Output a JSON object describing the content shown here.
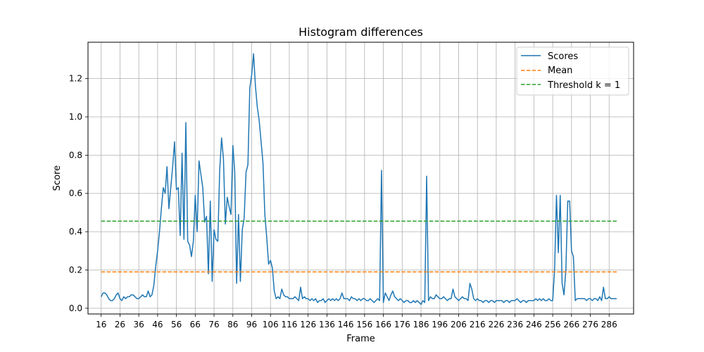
{
  "chart_data": {
    "type": "line",
    "title": "Histogram differences",
    "xlabel": "Frame",
    "ylabel": "Score",
    "xlim": [
      9,
      299
    ],
    "ylim": [
      -0.03,
      1.39
    ],
    "grid": true,
    "legend_position": "top-right",
    "x_ticks": [
      16,
      26,
      36,
      46,
      56,
      66,
      76,
      86,
      96,
      106,
      116,
      126,
      136,
      146,
      156,
      166,
      176,
      186,
      196,
      206,
      216,
      226,
      236,
      246,
      256,
      266,
      276,
      286
    ],
    "x_tick_labels": [
      "16",
      "26",
      "36",
      "46",
      "56",
      "66",
      "76",
      "86",
      "96",
      "106",
      "116",
      "126",
      "136",
      "146",
      "156",
      "166",
      "176",
      "186",
      "196",
      "206",
      "216",
      "226",
      "236",
      "246",
      "256",
      "266",
      "276",
      "286"
    ],
    "y_ticks": [
      0.0,
      0.2,
      0.4,
      0.6,
      0.8,
      1.0,
      1.2
    ],
    "y_tick_labels": [
      "0.0",
      "0.2",
      "0.4",
      "0.6",
      "0.8",
      "1.0",
      "1.2"
    ],
    "series": [
      {
        "name": "Scores",
        "color": "#1f77b4",
        "style": "solid",
        "points": [
          [
            16,
            0.06
          ],
          [
            17,
            0.08
          ],
          [
            18,
            0.08
          ],
          [
            19,
            0.07
          ],
          [
            20,
            0.05
          ],
          [
            21,
            0.04
          ],
          [
            22,
            0.04
          ],
          [
            23,
            0.05
          ],
          [
            24,
            0.07
          ],
          [
            25,
            0.08
          ],
          [
            26,
            0.05
          ],
          [
            27,
            0.04
          ],
          [
            28,
            0.06
          ],
          [
            29,
            0.05
          ],
          [
            30,
            0.06
          ],
          [
            31,
            0.06
          ],
          [
            32,
            0.07
          ],
          [
            33,
            0.07
          ],
          [
            34,
            0.06
          ],
          [
            35,
            0.05
          ],
          [
            36,
            0.05
          ],
          [
            37,
            0.06
          ],
          [
            38,
            0.07
          ],
          [
            39,
            0.06
          ],
          [
            40,
            0.06
          ],
          [
            41,
            0.09
          ],
          [
            42,
            0.06
          ],
          [
            43,
            0.07
          ],
          [
            44,
            0.12
          ],
          [
            45,
            0.22
          ],
          [
            46,
            0.3
          ],
          [
            47,
            0.4
          ],
          [
            48,
            0.52
          ],
          [
            49,
            0.63
          ],
          [
            50,
            0.6
          ],
          [
            51,
            0.74
          ],
          [
            52,
            0.52
          ],
          [
            53,
            0.63
          ],
          [
            54,
            0.74
          ],
          [
            55,
            0.87
          ],
          [
            56,
            0.62
          ],
          [
            57,
            0.63
          ],
          [
            58,
            0.38
          ],
          [
            59,
            0.81
          ],
          [
            60,
            0.36
          ],
          [
            61,
            0.97
          ],
          [
            62,
            0.35
          ],
          [
            63,
            0.33
          ],
          [
            64,
            0.27
          ],
          [
            65,
            0.35
          ],
          [
            66,
            0.59
          ],
          [
            67,
            0.4
          ],
          [
            68,
            0.77
          ],
          [
            69,
            0.7
          ],
          [
            70,
            0.63
          ],
          [
            71,
            0.45
          ],
          [
            72,
            0.48
          ],
          [
            73,
            0.18
          ],
          [
            74,
            0.56
          ],
          [
            75,
            0.14
          ],
          [
            76,
            0.41
          ],
          [
            77,
            0.36
          ],
          [
            78,
            0.35
          ],
          [
            79,
            0.72
          ],
          [
            80,
            0.89
          ],
          [
            81,
            0.78
          ],
          [
            82,
            0.44
          ],
          [
            83,
            0.58
          ],
          [
            84,
            0.53
          ],
          [
            85,
            0.49
          ],
          [
            86,
            0.85
          ],
          [
            87,
            0.71
          ],
          [
            88,
            0.13
          ],
          [
            89,
            0.49
          ],
          [
            90,
            0.14
          ],
          [
            91,
            0.41
          ],
          [
            92,
            0.47
          ],
          [
            93,
            0.71
          ],
          [
            94,
            0.75
          ],
          [
            95,
            1.15
          ],
          [
            96,
            1.22
          ],
          [
            97,
            1.33
          ],
          [
            98,
            1.16
          ],
          [
            99,
            1.05
          ],
          [
            100,
            0.98
          ],
          [
            101,
            0.87
          ],
          [
            102,
            0.76
          ],
          [
            103,
            0.49
          ],
          [
            104,
            0.37
          ],
          [
            105,
            0.23
          ],
          [
            106,
            0.25
          ],
          [
            107,
            0.21
          ],
          [
            108,
            0.09
          ],
          [
            109,
            0.05
          ],
          [
            110,
            0.06
          ],
          [
            111,
            0.05
          ],
          [
            112,
            0.1
          ],
          [
            113,
            0.07
          ],
          [
            114,
            0.06
          ],
          [
            115,
            0.06
          ],
          [
            116,
            0.05
          ],
          [
            117,
            0.05
          ],
          [
            118,
            0.05
          ],
          [
            119,
            0.06
          ],
          [
            120,
            0.05
          ],
          [
            121,
            0.04
          ],
          [
            122,
            0.11
          ],
          [
            123,
            0.05
          ],
          [
            124,
            0.06
          ],
          [
            125,
            0.05
          ],
          [
            126,
            0.05
          ],
          [
            127,
            0.04
          ],
          [
            128,
            0.05
          ],
          [
            129,
            0.04
          ],
          [
            130,
            0.05
          ],
          [
            131,
            0.03
          ],
          [
            132,
            0.04
          ],
          [
            133,
            0.04
          ],
          [
            134,
            0.05
          ],
          [
            135,
            0.03
          ],
          [
            136,
            0.04
          ],
          [
            137,
            0.05
          ],
          [
            138,
            0.04
          ],
          [
            139,
            0.05
          ],
          [
            140,
            0.04
          ],
          [
            141,
            0.05
          ],
          [
            142,
            0.04
          ],
          [
            143,
            0.05
          ],
          [
            144,
            0.08
          ],
          [
            145,
            0.05
          ],
          [
            146,
            0.05
          ],
          [
            147,
            0.05
          ],
          [
            148,
            0.04
          ],
          [
            149,
            0.06
          ],
          [
            150,
            0.05
          ],
          [
            151,
            0.05
          ],
          [
            152,
            0.04
          ],
          [
            153,
            0.05
          ],
          [
            154,
            0.04
          ],
          [
            155,
            0.05
          ],
          [
            156,
            0.05
          ],
          [
            157,
            0.04
          ],
          [
            158,
            0.04
          ],
          [
            159,
            0.05
          ],
          [
            160,
            0.04
          ],
          [
            161,
            0.03
          ],
          [
            162,
            0.04
          ],
          [
            163,
            0.05
          ],
          [
            164,
            0.04
          ],
          [
            165,
            0.72
          ],
          [
            166,
            0.03
          ],
          [
            167,
            0.08
          ],
          [
            168,
            0.06
          ],
          [
            169,
            0.04
          ],
          [
            170,
            0.07
          ],
          [
            171,
            0.09
          ],
          [
            172,
            0.06
          ],
          [
            173,
            0.05
          ],
          [
            174,
            0.04
          ],
          [
            175,
            0.05
          ],
          [
            176,
            0.04
          ],
          [
            177,
            0.03
          ],
          [
            178,
            0.04
          ],
          [
            179,
            0.04
          ],
          [
            180,
            0.03
          ],
          [
            181,
            0.03
          ],
          [
            182,
            0.04
          ],
          [
            183,
            0.03
          ],
          [
            184,
            0.04
          ],
          [
            185,
            0.03
          ],
          [
            186,
            0.02
          ],
          [
            187,
            0.04
          ],
          [
            188,
            0.03
          ],
          [
            189,
            0.69
          ],
          [
            190,
            0.04
          ],
          [
            191,
            0.06
          ],
          [
            192,
            0.05
          ],
          [
            193,
            0.05
          ],
          [
            194,
            0.07
          ],
          [
            195,
            0.06
          ],
          [
            196,
            0.05
          ],
          [
            197,
            0.05
          ],
          [
            198,
            0.06
          ],
          [
            199,
            0.05
          ],
          [
            200,
            0.04
          ],
          [
            201,
            0.05
          ],
          [
            202,
            0.05
          ],
          [
            203,
            0.1
          ],
          [
            204,
            0.06
          ],
          [
            205,
            0.05
          ],
          [
            206,
            0.04
          ],
          [
            207,
            0.05
          ],
          [
            208,
            0.06
          ],
          [
            209,
            0.05
          ],
          [
            210,
            0.05
          ],
          [
            211,
            0.04
          ],
          [
            212,
            0.13
          ],
          [
            213,
            0.1
          ],
          [
            214,
            0.05
          ],
          [
            215,
            0.04
          ],
          [
            216,
            0.05
          ],
          [
            217,
            0.04
          ],
          [
            218,
            0.04
          ],
          [
            219,
            0.03
          ],
          [
            220,
            0.04
          ],
          [
            221,
            0.04
          ],
          [
            222,
            0.03
          ],
          [
            223,
            0.04
          ],
          [
            224,
            0.04
          ],
          [
            225,
            0.03
          ],
          [
            226,
            0.04
          ],
          [
            227,
            0.04
          ],
          [
            228,
            0.04
          ],
          [
            229,
            0.04
          ],
          [
            230,
            0.03
          ],
          [
            231,
            0.04
          ],
          [
            232,
            0.04
          ],
          [
            233,
            0.03
          ],
          [
            234,
            0.04
          ],
          [
            235,
            0.04
          ],
          [
            236,
            0.04
          ],
          [
            237,
            0.05
          ],
          [
            238,
            0.04
          ],
          [
            239,
            0.03
          ],
          [
            240,
            0.04
          ],
          [
            241,
            0.04
          ],
          [
            242,
            0.03
          ],
          [
            243,
            0.04
          ],
          [
            244,
            0.04
          ],
          [
            245,
            0.04
          ],
          [
            246,
            0.04
          ],
          [
            247,
            0.05
          ],
          [
            248,
            0.04
          ],
          [
            249,
            0.05
          ],
          [
            250,
            0.04
          ],
          [
            251,
            0.05
          ],
          [
            252,
            0.04
          ],
          [
            253,
            0.04
          ],
          [
            254,
            0.05
          ],
          [
            255,
            0.04
          ],
          [
            256,
            0.04
          ],
          [
            257,
            0.2
          ],
          [
            258,
            0.59
          ],
          [
            259,
            0.29
          ],
          [
            260,
            0.59
          ],
          [
            261,
            0.13
          ],
          [
            262,
            0.07
          ],
          [
            263,
            0.2
          ],
          [
            264,
            0.56
          ],
          [
            265,
            0.56
          ],
          [
            266,
            0.3
          ],
          [
            267,
            0.27
          ],
          [
            268,
            0.04
          ],
          [
            269,
            0.05
          ],
          [
            270,
            0.05
          ],
          [
            271,
            0.05
          ],
          [
            272,
            0.05
          ],
          [
            273,
            0.05
          ],
          [
            274,
            0.04
          ],
          [
            275,
            0.05
          ],
          [
            276,
            0.05
          ],
          [
            277,
            0.04
          ],
          [
            278,
            0.05
          ],
          [
            279,
            0.05
          ],
          [
            280,
            0.04
          ],
          [
            281,
            0.06
          ],
          [
            282,
            0.04
          ],
          [
            283,
            0.11
          ],
          [
            284,
            0.05
          ],
          [
            285,
            0.05
          ],
          [
            286,
            0.06
          ],
          [
            287,
            0.05
          ],
          [
            288,
            0.05
          ],
          [
            289,
            0.05
          ],
          [
            290,
            0.05
          ]
        ]
      },
      {
        "name": "Mean",
        "color": "#ff7f0e",
        "style": "dashed",
        "points": [
          [
            16,
            0.19
          ],
          [
            290,
            0.19
          ]
        ]
      },
      {
        "name": "Threshold k = 1",
        "color": "#2ca02c",
        "style": "dashed",
        "points": [
          [
            16,
            0.455
          ],
          [
            290,
            0.455
          ]
        ]
      }
    ]
  }
}
